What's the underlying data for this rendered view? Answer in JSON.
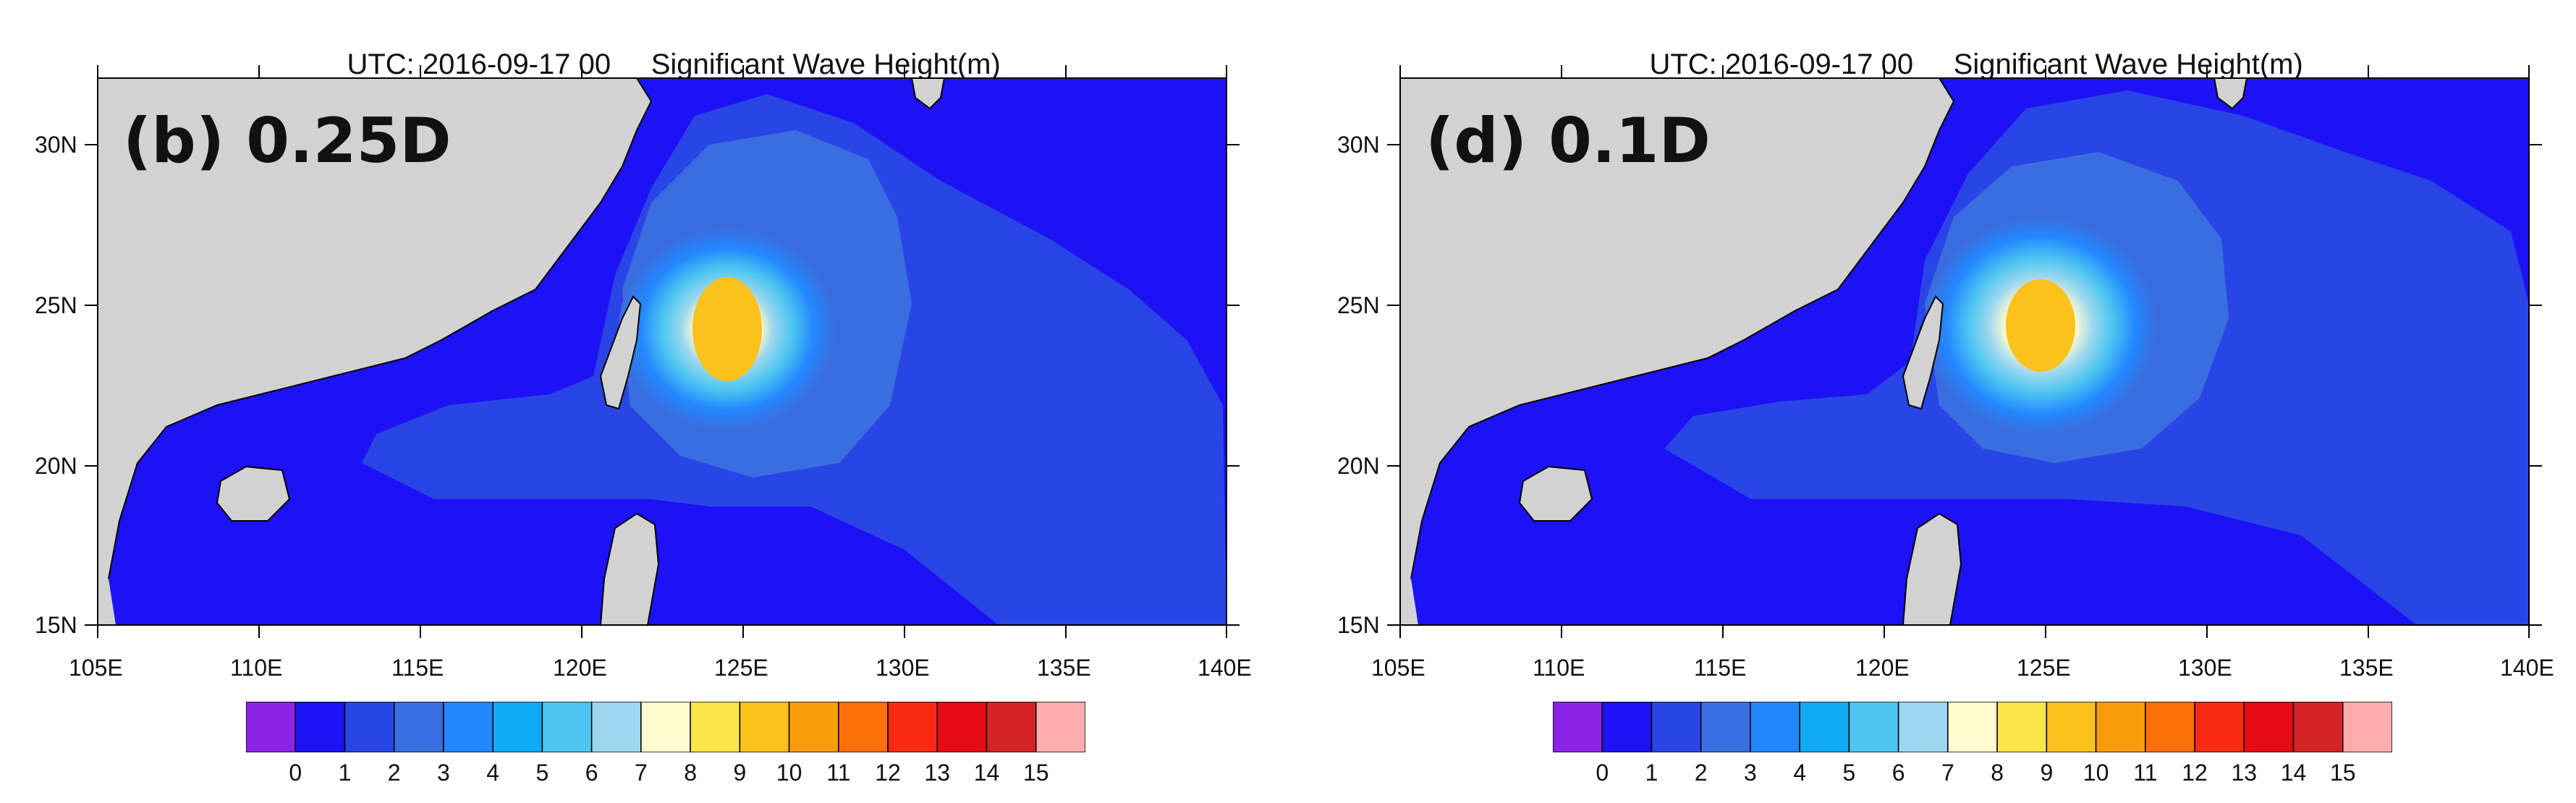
{
  "panels": [
    {
      "panel_label": "(b) 0.25D",
      "title_time": "UTC: 2016-09-17 00",
      "title_var": "Significant Wave Height(m)"
    },
    {
      "panel_label": "(d) 0.1D",
      "title_time": "UTC: 2016-09-17 00",
      "title_var": "Significant Wave Height(m)"
    }
  ],
  "map": {
    "lon_ticks": [
      "105E",
      "110E",
      "115E",
      "120E",
      "125E",
      "130E",
      "135E",
      "140E"
    ],
    "lat_ticks": [
      "30N",
      "25N",
      "20N",
      "15N"
    ]
  },
  "colorbar": {
    "labels": [
      "0",
      "1",
      "2",
      "3",
      "4",
      "5",
      "6",
      "7",
      "8",
      "9",
      "10",
      "11",
      "12",
      "13",
      "14",
      "15"
    ],
    "colors": [
      "#8c24e8",
      "#1c12f5",
      "#2a45e6",
      "#3a6ee0",
      "#2388ff",
      "#10aaf6",
      "#4cc5f0",
      "#9dd7ef",
      "#fdfbcf",
      "#fbe64a",
      "#fbc11c",
      "#fb9d0a",
      "#fb700a",
      "#fa2a12",
      "#e60a12",
      "#d32424",
      "#fdadad"
    ]
  },
  "colors": {
    "land": "#d2d2d2",
    "ocean_min": "#1c12f5"
  }
}
